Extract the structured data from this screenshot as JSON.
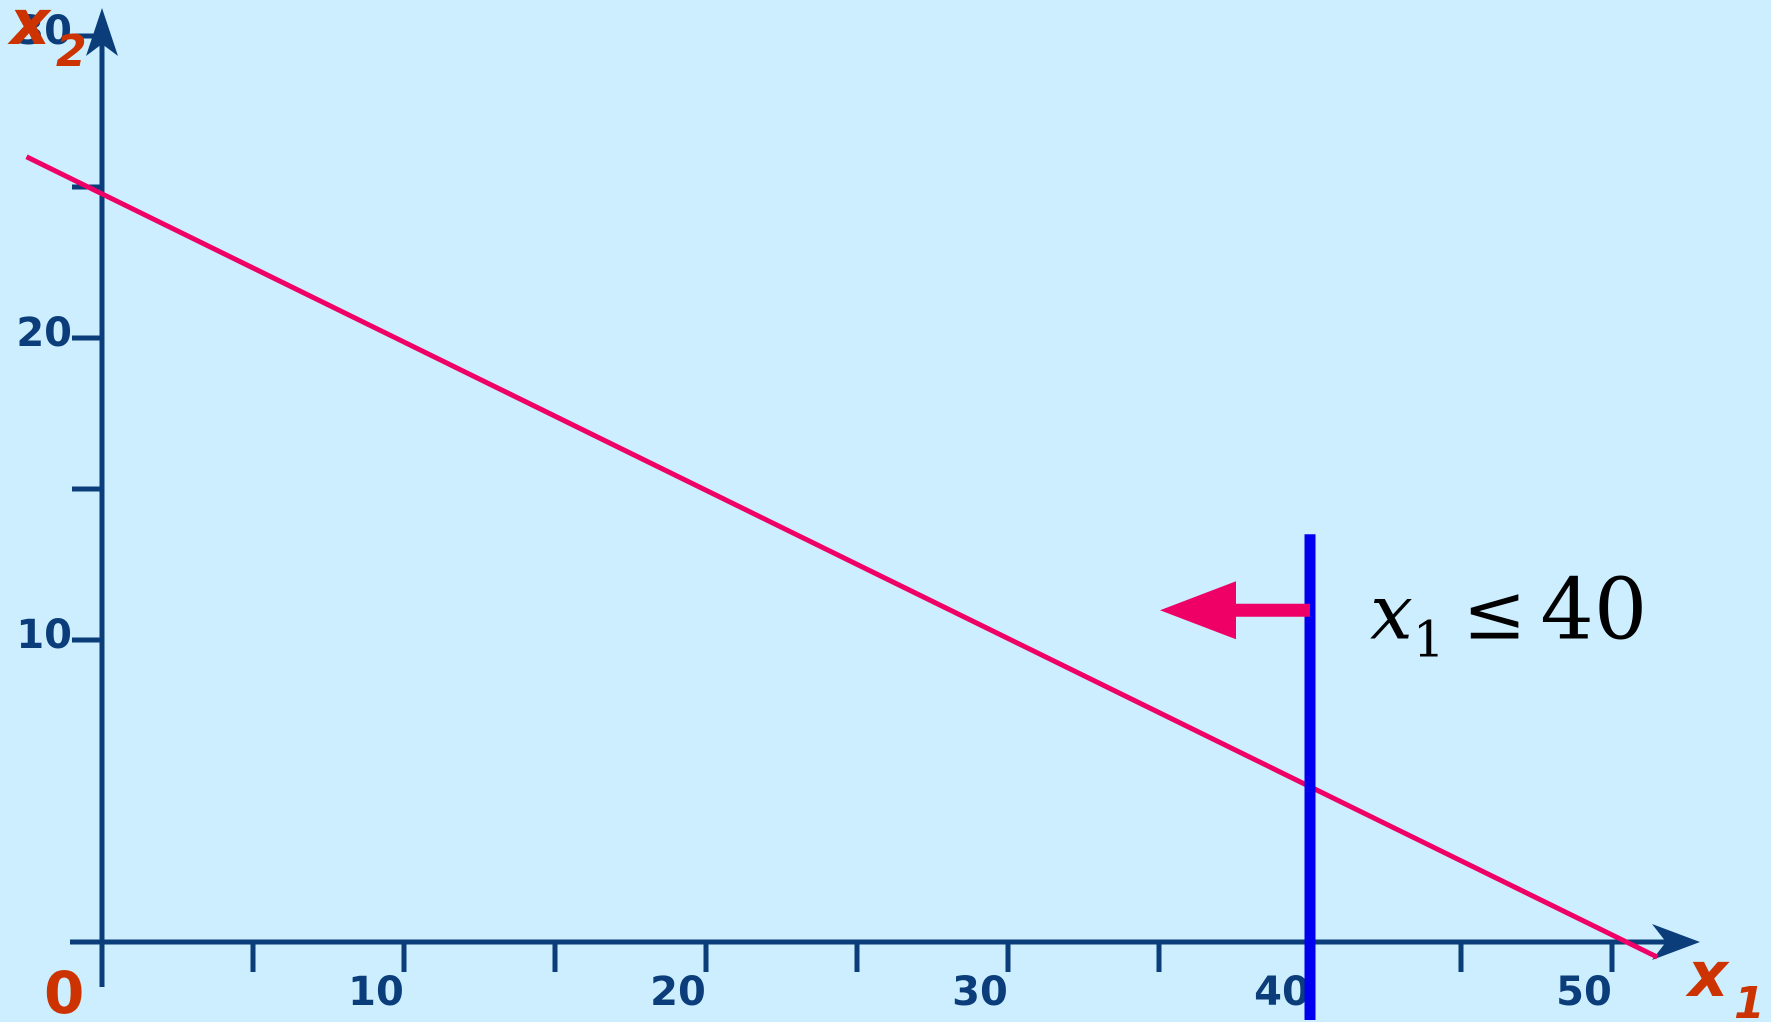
{
  "colors": {
    "background": "#cceeff",
    "axis": "#0a3d7a",
    "axis_label": "#cc3300",
    "objective_line": "#ee0066",
    "constraint_line": "#0000ee",
    "arrow": "#ee0066"
  },
  "chart_data": {
    "type": "line",
    "xlabel": "x",
    "xlabel_sub": "1",
    "ylabel": "x",
    "ylabel_sub": "2",
    "origin_label": "0",
    "xlim": [
      0,
      52
    ],
    "ylim": [
      0,
      35
    ],
    "x_ticks": [
      5,
      10,
      15,
      20,
      25,
      30,
      35,
      40,
      45,
      50
    ],
    "x_tick_labels": [
      {
        "value": 10,
        "text": "10"
      },
      {
        "value": 20,
        "text": "20"
      },
      {
        "value": 30,
        "text": "30"
      },
      {
        "value": 40,
        "text": "40"
      },
      {
        "value": 50,
        "text": "50"
      }
    ],
    "y_ticks": [
      10,
      15,
      20,
      25,
      30
    ],
    "y_tick_labels": [
      {
        "value": 10,
        "text": "10"
      },
      {
        "value": 20,
        "text": "20"
      },
      {
        "value": 30,
        "text": "30"
      }
    ],
    "series": [
      {
        "x": [
          -2.5,
          51.5
        ],
        "y": [
          26,
          -0.5
        ]
      }
    ],
    "constraint": {
      "x_value": 40,
      "y_range": [
        -2.7,
        13.5
      ],
      "direction": "left",
      "label": {
        "var": "x",
        "sub": "1",
        "op": "≤",
        "value": "40"
      }
    }
  }
}
